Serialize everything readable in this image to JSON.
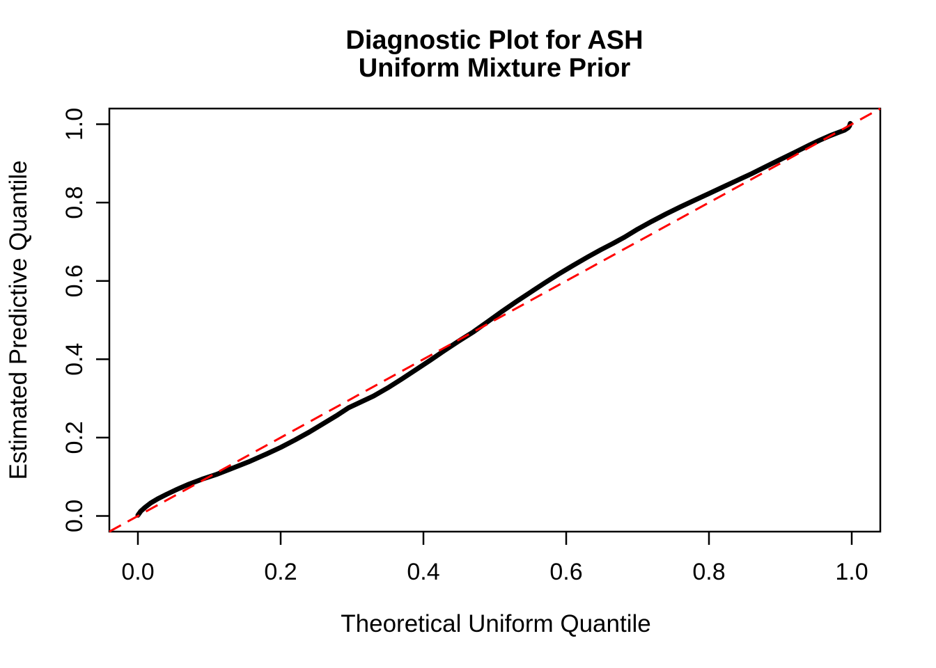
{
  "figure": {
    "background": "#ffffff"
  },
  "chart_data": {
    "type": "line",
    "subtype": "qq-plot-uniform-diagnostic",
    "title_lines": [
      "Diagnostic Plot for ASH",
      "Uniform Mixture Prior"
    ],
    "xlabel": "Theoretical Uniform Quantile",
    "ylabel": "Estimated Predictive Quantile",
    "xlim": [
      -0.04,
      1.04
    ],
    "ylim": [
      -0.04,
      1.04
    ],
    "x_tick_values": [
      0.0,
      0.2,
      0.4,
      0.6,
      0.8,
      1.0
    ],
    "x_tick_labels": [
      "0.0",
      "0.2",
      "0.4",
      "0.6",
      "0.8",
      "1.0"
    ],
    "y_tick_values": [
      0.0,
      0.2,
      0.4,
      0.6,
      0.8,
      1.0
    ],
    "y_tick_labels": [
      "0.0",
      "0.2",
      "0.4",
      "0.6",
      "0.8",
      "1.0"
    ],
    "grid": false,
    "legend": "none",
    "frame_box": true,
    "colors": {
      "curve": "#000000",
      "reference": "#ff0000",
      "axis": "#000000",
      "text": "#000000",
      "background": "#ffffff"
    },
    "series": [
      {
        "name": "estimated-predictive-quantiles",
        "type": "line",
        "color": "#000000",
        "stroke_width": 7,
        "points": [
          [
            0.0,
            0.002
          ],
          [
            0.004,
            0.012
          ],
          [
            0.01,
            0.022
          ],
          [
            0.018,
            0.033
          ],
          [
            0.028,
            0.044
          ],
          [
            0.04,
            0.055
          ],
          [
            0.055,
            0.068
          ],
          [
            0.07,
            0.08
          ],
          [
            0.09,
            0.094
          ],
          [
            0.11,
            0.106
          ],
          [
            0.13,
            0.12
          ],
          [
            0.155,
            0.138
          ],
          [
            0.18,
            0.158
          ],
          [
            0.2,
            0.175
          ],
          [
            0.22,
            0.194
          ],
          [
            0.24,
            0.214
          ],
          [
            0.26,
            0.236
          ],
          [
            0.28,
            0.258
          ],
          [
            0.295,
            0.276
          ],
          [
            0.31,
            0.289
          ],
          [
            0.33,
            0.306
          ],
          [
            0.35,
            0.327
          ],
          [
            0.37,
            0.35
          ],
          [
            0.39,
            0.374
          ],
          [
            0.41,
            0.398
          ],
          [
            0.43,
            0.423
          ],
          [
            0.45,
            0.447
          ],
          [
            0.47,
            0.47
          ],
          [
            0.49,
            0.496
          ],
          [
            0.51,
            0.522
          ],
          [
            0.53,
            0.547
          ],
          [
            0.55,
            0.571
          ],
          [
            0.57,
            0.595
          ],
          [
            0.59,
            0.618
          ],
          [
            0.61,
            0.64
          ],
          [
            0.63,
            0.661
          ],
          [
            0.648,
            0.679
          ],
          [
            0.665,
            0.695
          ],
          [
            0.682,
            0.712
          ],
          [
            0.7,
            0.732
          ],
          [
            0.72,
            0.752
          ],
          [
            0.74,
            0.771
          ],
          [
            0.76,
            0.789
          ],
          [
            0.78,
            0.806
          ],
          [
            0.8,
            0.823
          ],
          [
            0.82,
            0.84
          ],
          [
            0.84,
            0.857
          ],
          [
            0.86,
            0.874
          ],
          [
            0.88,
            0.892
          ],
          [
            0.9,
            0.91
          ],
          [
            0.92,
            0.928
          ],
          [
            0.94,
            0.946
          ],
          [
            0.955,
            0.959
          ],
          [
            0.97,
            0.971
          ],
          [
            0.98,
            0.978
          ],
          [
            0.99,
            0.985
          ],
          [
            0.995,
            0.991
          ],
          [
            0.997,
            0.996
          ],
          [
            0.998,
            1.002
          ]
        ]
      }
    ],
    "reference_line": {
      "name": "identity-line",
      "style": "dashed",
      "color": "#ff0000",
      "stroke_width": 3,
      "dash": [
        19,
        11
      ],
      "from": [
        -0.04,
        -0.04
      ],
      "to": [
        1.04,
        1.04
      ]
    }
  }
}
